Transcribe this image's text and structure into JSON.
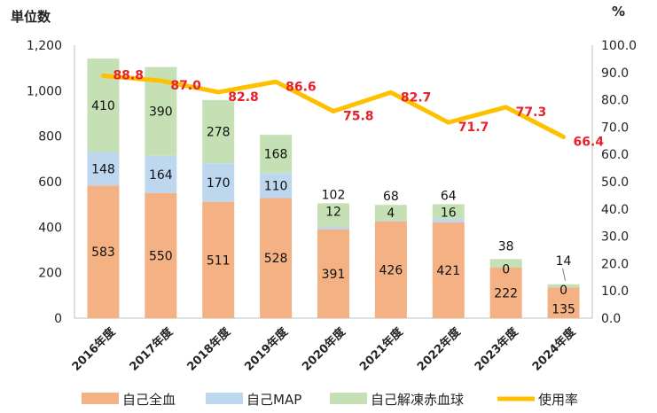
{
  "chart_data": {
    "type": "bar",
    "stacked": true,
    "left_axis_unit": "単位数",
    "right_axis_unit": "%",
    "categories": [
      "2016年度",
      "2017年度",
      "2018年度",
      "2019年度",
      "2020年度",
      "2021年度",
      "2022年度",
      "2023年度",
      "2024年度"
    ],
    "series": [
      {
        "name": "自己全血",
        "type": "bar",
        "axis": "left",
        "color": "#f4b183",
        "values": [
          583,
          550,
          511,
          528,
          391,
          426,
          421,
          222,
          135
        ]
      },
      {
        "name": "自己MAP",
        "type": "bar",
        "axis": "left",
        "color": "#bdd7ee",
        "values": [
          148,
          164,
          170,
          110,
          12,
          4,
          16,
          0,
          0
        ]
      },
      {
        "name": "自己解凍赤血球",
        "type": "bar",
        "axis": "left",
        "color": "#c5e0b4",
        "values": [
          410,
          390,
          278,
          168,
          102,
          68,
          64,
          38,
          14
        ]
      },
      {
        "name": "使用率",
        "type": "line",
        "axis": "right",
        "color": "#ffc000",
        "values": [
          88.8,
          87.0,
          82.8,
          86.6,
          75.8,
          82.7,
          71.7,
          77.3,
          66.4
        ]
      }
    ],
    "left_axis": {
      "min": 0,
      "max": 1200,
      "ticks": [
        "0",
        "200",
        "400",
        "600",
        "800",
        "1,000",
        "1,200"
      ]
    },
    "right_axis": {
      "min": 0,
      "max": 100,
      "ticks": [
        "0.0",
        "10.0",
        "20.0",
        "30.0",
        "40.0",
        "50.0",
        "60.0",
        "70.0",
        "80.0",
        "90.0",
        "100.0"
      ]
    },
    "rate_labels": [
      "88.8",
      "87.0",
      "82.8",
      "86.6",
      "75.8",
      "82.7",
      "71.7",
      "77.3",
      "66.4"
    ],
    "grid": false,
    "legend_position": "bottom"
  }
}
